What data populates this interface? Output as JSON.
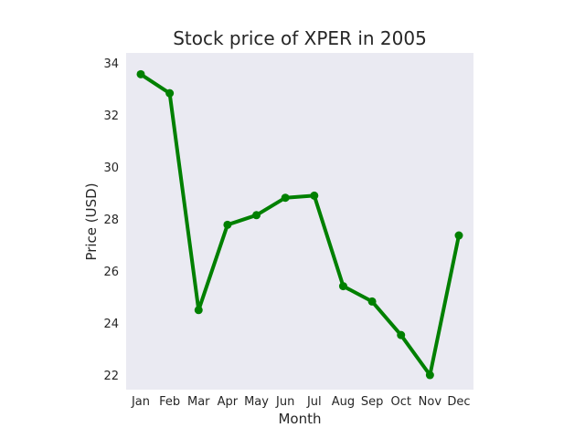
{
  "chart_data": {
    "type": "line",
    "title": "Stock price of XPER in 2005",
    "xlabel": "Month",
    "ylabel": "Price (USD)",
    "categories": [
      "Jan",
      "Feb",
      "Mar",
      "Apr",
      "May",
      "Jun",
      "Jul",
      "Aug",
      "Sep",
      "Oct",
      "Nov",
      "Dec"
    ],
    "series": [
      {
        "values": [
          33.58,
          32.85,
          24.51,
          27.79,
          28.16,
          28.83,
          28.91,
          25.43,
          24.84,
          23.55,
          22.01,
          27.38
        ]
      }
    ],
    "ylim": [
      21.45,
      34.4
    ],
    "yticks": [
      22,
      24,
      26,
      28,
      30,
      32,
      34
    ],
    "grid": false,
    "legend": "none",
    "colors": {
      "line": "#008000",
      "plot_background": "#eaeaf2"
    }
  }
}
